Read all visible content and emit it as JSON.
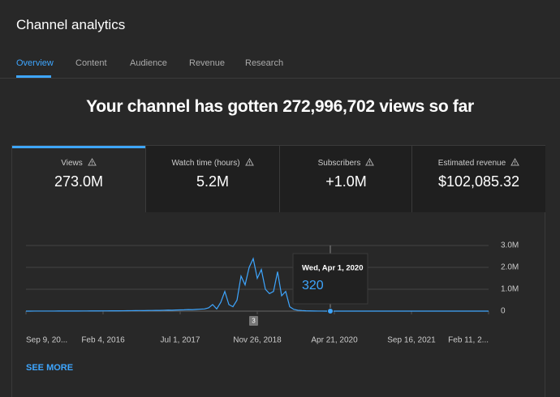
{
  "header": {
    "title": "Channel analytics"
  },
  "tabs": [
    "Overview",
    "Content",
    "Audience",
    "Revenue",
    "Research"
  ],
  "headline": "Your channel has gotten 272,996,702 views so far",
  "cards": [
    {
      "label": "Views",
      "value": "273.0M"
    },
    {
      "label": "Watch time (hours)",
      "value": "5.2M"
    },
    {
      "label": "Subscribers",
      "value": "+1.0M"
    },
    {
      "label": "Estimated revenue",
      "value": "$102,085.32"
    }
  ],
  "chart_data": {
    "type": "line",
    "series": [
      {
        "name": "Views",
        "color": "#3ea6ff",
        "values": [
          1000,
          1200,
          1500,
          1800,
          2000,
          2500,
          3000,
          2800,
          3500,
          4000,
          4200,
          5000,
          5500,
          6000,
          7000,
          6500,
          8000,
          9000,
          10000,
          12000,
          11000,
          13000,
          15000,
          14000,
          16000,
          18000,
          20000,
          22000,
          25000,
          24000,
          28000,
          30000,
          35000,
          32000,
          40000,
          45000,
          42000,
          50000,
          55000,
          60000,
          70000,
          65000,
          80000,
          90000,
          100000,
          150000,
          300000,
          100000,
          400000,
          900000,
          300000,
          200000,
          500000,
          1600000,
          1200000,
          2000000,
          2400000,
          1500000,
          1900000,
          1000000,
          800000,
          900000,
          1800000,
          700000,
          900000,
          200000,
          80000,
          40000,
          25000,
          15000,
          10000,
          6000,
          3000,
          1500,
          800,
          320,
          300,
          280,
          250,
          260,
          240,
          220,
          200,
          210,
          190,
          180,
          170,
          160,
          150,
          155,
          140,
          130,
          120,
          125,
          110,
          100,
          95,
          90,
          85,
          80,
          78,
          75,
          70,
          68,
          65,
          60,
          58,
          55,
          52,
          50,
          48,
          45,
          42,
          40,
          38
        ]
      }
    ],
    "ylim": [
      0,
      3000000
    ],
    "yticks": [
      0,
      {
        "value": 1000000,
        "label": "1.0M"
      },
      {
        "value": 2000000,
        "label": "2.0M"
      },
      {
        "value": 3000000,
        "label": "3.0M"
      }
    ],
    "xlim": [
      0,
      114
    ],
    "xticks": [
      {
        "value": 0,
        "label": "Sep 9, 20..."
      },
      {
        "value": 19,
        "label": "Feb 4, 2016"
      },
      {
        "value": 38,
        "label": "Jul 1, 2017"
      },
      {
        "value": 57,
        "label": "Nov 26, 2018"
      },
      {
        "value": 76,
        "label": "Apr 21, 2020"
      },
      {
        "value": 95,
        "label": "Sep 16, 2021"
      },
      {
        "value": 114,
        "label": "Feb 11, 2..."
      }
    ],
    "grid": true,
    "tooltip": {
      "index": 75,
      "date": "Wed, Apr 1, 2020",
      "value": 320
    },
    "badge": {
      "index": 56,
      "label": "3"
    }
  },
  "footer_link": "SEE MORE"
}
